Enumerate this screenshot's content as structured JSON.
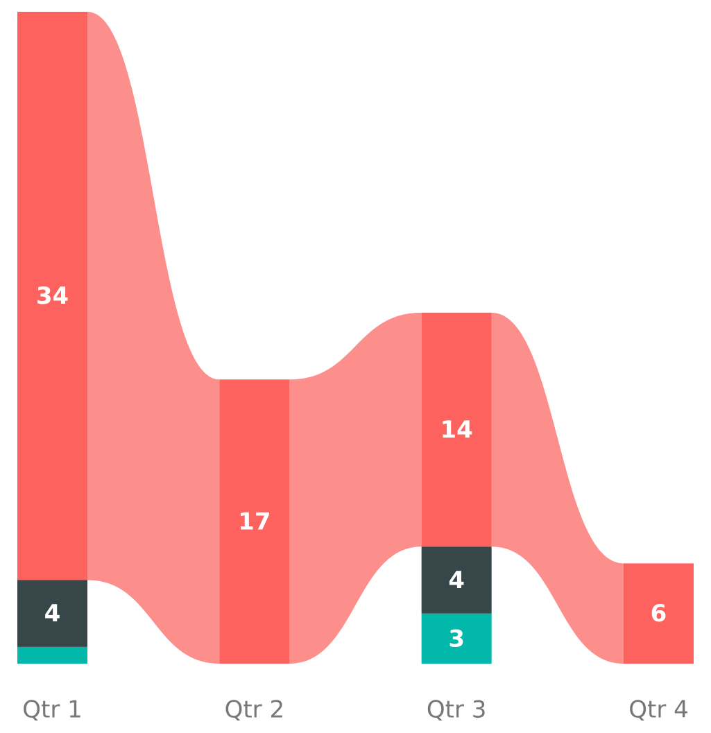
{
  "chart_data": {
    "type": "ribbon",
    "categories": [
      "Qtr 1",
      "Qtr 2",
      "Qtr 3",
      "Qtr 4"
    ],
    "series": [
      {
        "color": "#01b8aa",
        "values": [
          1,
          0,
          3,
          0
        ]
      },
      {
        "color": "#374649",
        "values": [
          4,
          0,
          4,
          0
        ]
      },
      {
        "color": "#fd625e",
        "ribbon_color": "#fc8f8b",
        "values": [
          34,
          17,
          14,
          6
        ]
      }
    ]
  }
}
